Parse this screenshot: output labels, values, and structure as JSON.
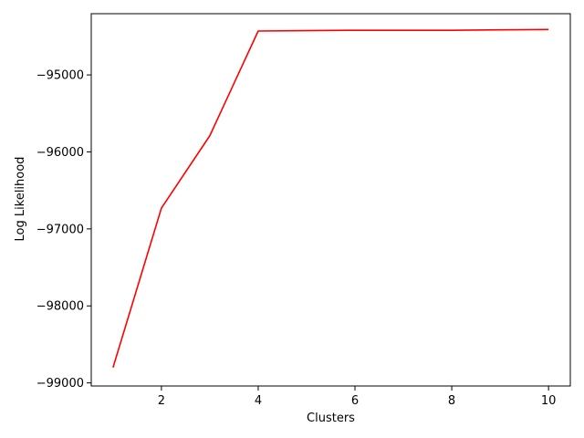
{
  "chart_data": {
    "type": "line",
    "title": "",
    "xlabel": "Clusters",
    "ylabel": "Log Likelihood",
    "xlim": [
      0.55,
      10.45
    ],
    "ylim": [
      -99040,
      -94205
    ],
    "xticks": [
      2,
      4,
      6,
      8,
      10
    ],
    "xtick_labels": [
      "2",
      "4",
      "6",
      "8",
      "10"
    ],
    "yticks": [
      -99000,
      -98000,
      -97000,
      -96000,
      -95000
    ],
    "ytick_labels": [
      "−99000",
      "−98000",
      "−97000",
      "−96000",
      "−95000"
    ],
    "grid": false,
    "legend": "none",
    "series": [
      {
        "color": "#ff0000",
        "x": [
          1,
          2,
          3,
          4,
          5,
          6,
          7,
          8,
          9,
          10
        ],
        "values": [
          -98800,
          -96730,
          -95790,
          -94430,
          -94425,
          -94420,
          -94420,
          -94420,
          -94415,
          -94410
        ]
      }
    ]
  }
}
